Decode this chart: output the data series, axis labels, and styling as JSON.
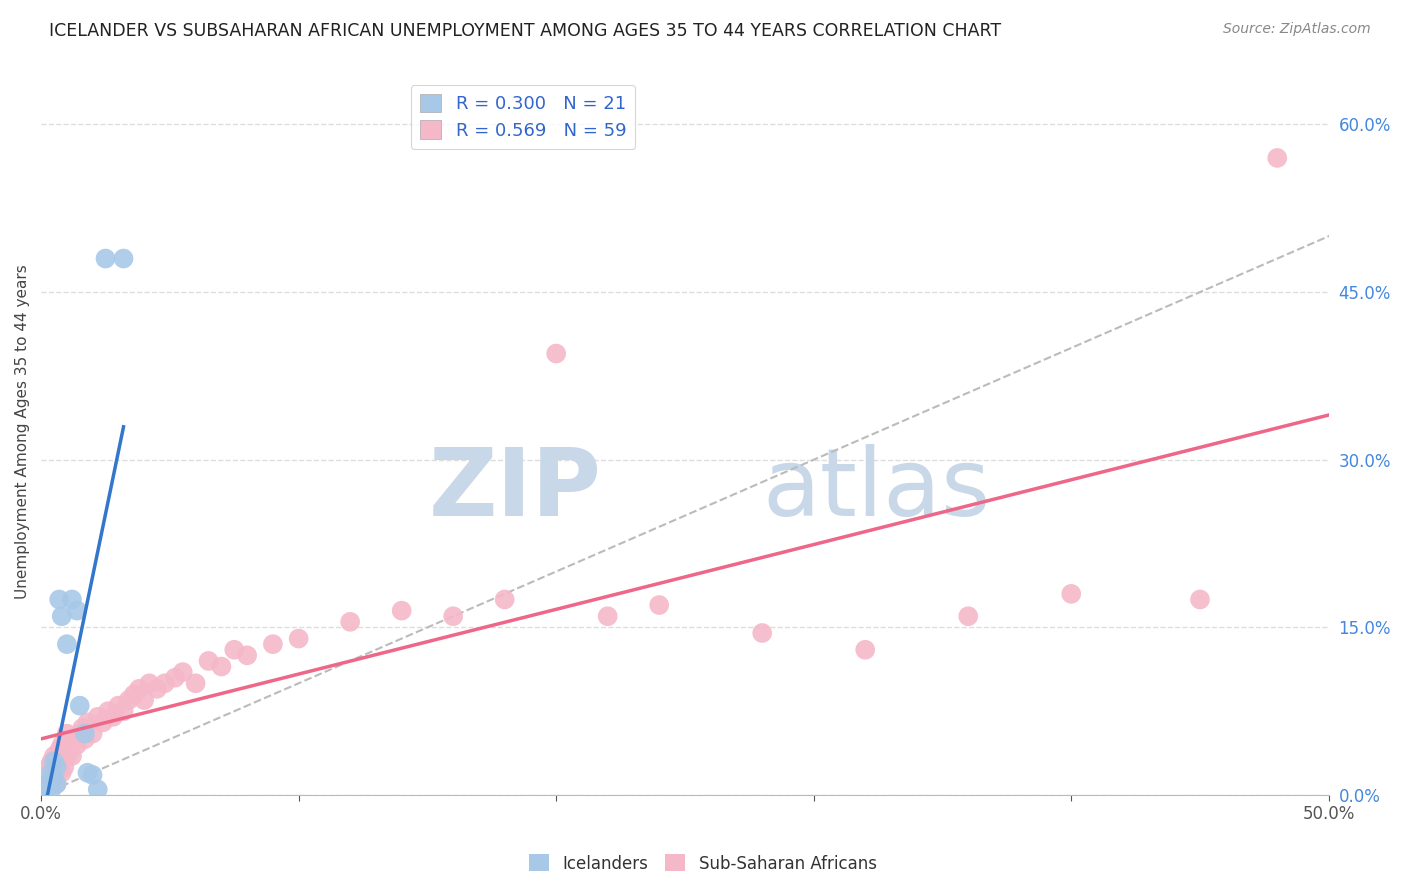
{
  "title": "ICELANDER VS SUBSAHARAN AFRICAN UNEMPLOYMENT AMONG AGES 35 TO 44 YEARS CORRELATION CHART",
  "source": "Source: ZipAtlas.com",
  "ylabel": "Unemployment Among Ages 35 to 44 years",
  "xlim": [
    0.0,
    0.5
  ],
  "ylim": [
    0.0,
    0.65
  ],
  "r_iceland": 0.3,
  "n_iceland": 21,
  "r_subsaharan": 0.569,
  "n_subsaharan": 59,
  "blue_color": "#a8c8e8",
  "pink_color": "#f4b8c8",
  "blue_line_color": "#3377cc",
  "pink_line_color": "#ee6688",
  "iceland_x": [
    0.002,
    0.003,
    0.003,
    0.004,
    0.004,
    0.005,
    0.005,
    0.006,
    0.006,
    0.007,
    0.008,
    0.01,
    0.012,
    0.014,
    0.015,
    0.017,
    0.018,
    0.02,
    0.022,
    0.025,
    0.032
  ],
  "iceland_y": [
    0.005,
    0.008,
    0.012,
    0.005,
    0.02,
    0.015,
    0.03,
    0.01,
    0.025,
    0.175,
    0.16,
    0.135,
    0.175,
    0.165,
    0.08,
    0.055,
    0.02,
    0.018,
    0.005,
    0.48,
    0.48
  ],
  "subsaharan_x": [
    0.002,
    0.003,
    0.004,
    0.004,
    0.005,
    0.005,
    0.006,
    0.006,
    0.007,
    0.007,
    0.008,
    0.008,
    0.009,
    0.01,
    0.01,
    0.011,
    0.012,
    0.013,
    0.014,
    0.015,
    0.016,
    0.017,
    0.018,
    0.02,
    0.022,
    0.024,
    0.026,
    0.028,
    0.03,
    0.032,
    0.034,
    0.036,
    0.038,
    0.04,
    0.042,
    0.045,
    0.048,
    0.052,
    0.055,
    0.06,
    0.065,
    0.07,
    0.075,
    0.08,
    0.09,
    0.1,
    0.12,
    0.14,
    0.16,
    0.18,
    0.2,
    0.22,
    0.24,
    0.28,
    0.32,
    0.36,
    0.4,
    0.45,
    0.48
  ],
  "subsaharan_y": [
    0.02,
    0.025,
    0.015,
    0.03,
    0.02,
    0.035,
    0.01,
    0.025,
    0.03,
    0.04,
    0.02,
    0.045,
    0.025,
    0.035,
    0.055,
    0.04,
    0.035,
    0.05,
    0.045,
    0.055,
    0.06,
    0.05,
    0.065,
    0.055,
    0.07,
    0.065,
    0.075,
    0.07,
    0.08,
    0.075,
    0.085,
    0.09,
    0.095,
    0.085,
    0.1,
    0.095,
    0.1,
    0.105,
    0.11,
    0.1,
    0.12,
    0.115,
    0.13,
    0.125,
    0.135,
    0.14,
    0.155,
    0.165,
    0.16,
    0.175,
    0.395,
    0.16,
    0.17,
    0.145,
    0.13,
    0.16,
    0.18,
    0.175,
    0.57
  ],
  "watermark_zip": "ZIP",
  "watermark_atlas": "atlas",
  "background_color": "#ffffff",
  "grid_color": "#dddddd",
  "ytick_vals": [
    0.0,
    0.15,
    0.3,
    0.45,
    0.6
  ],
  "ytick_labels": [
    "0.0%",
    "15.0%",
    "30.0%",
    "45.0%",
    "60.0%"
  ]
}
